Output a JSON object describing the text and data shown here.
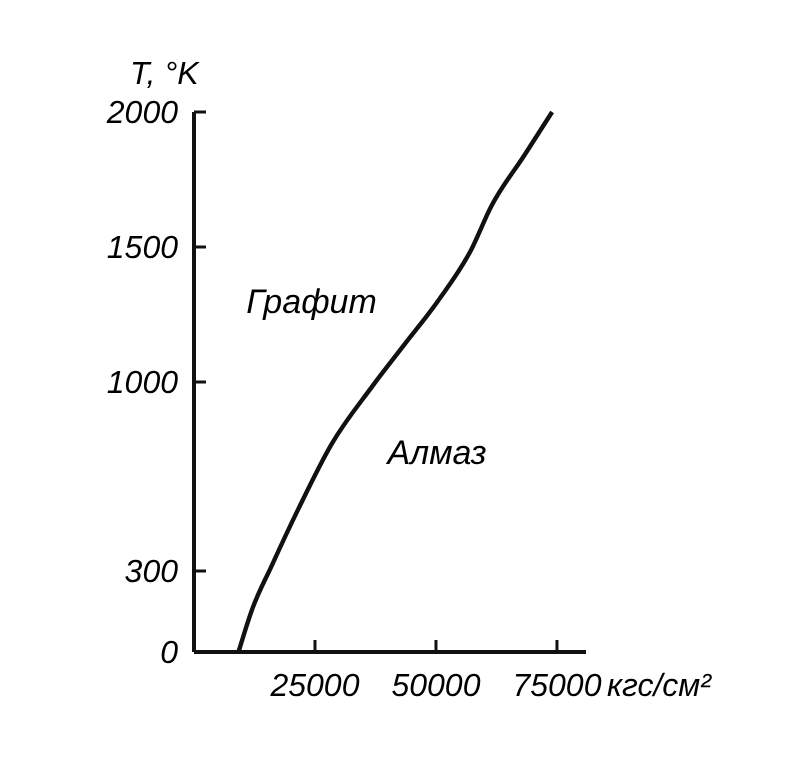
{
  "chart_data": {
    "type": "line",
    "xlabel": "кгс/см²",
    "ylabel": "T, °K",
    "xlim": [
      0,
      81000
    ],
    "ylim": [
      0,
      2000
    ],
    "xticks": [
      25000,
      50000,
      75000
    ],
    "yticks": [
      0,
      300,
      1000,
      1500,
      2000
    ],
    "grid": false,
    "marker": "none",
    "line_style": "solid",
    "annotations": [
      "Графит",
      "Алмаз"
    ],
    "series": [
      {
        "color": "#111111",
        "x": [
          9200,
          11950,
          16070,
          21570,
          28430,
          36680,
          43540,
          50410,
          57280,
          61400,
          68270,
          74000
        ],
        "values": [
          0,
          155,
          320,
          530,
          770,
          980,
          1140,
          1300,
          1490,
          1650,
          1840,
          2000
        ]
      }
    ]
  }
}
